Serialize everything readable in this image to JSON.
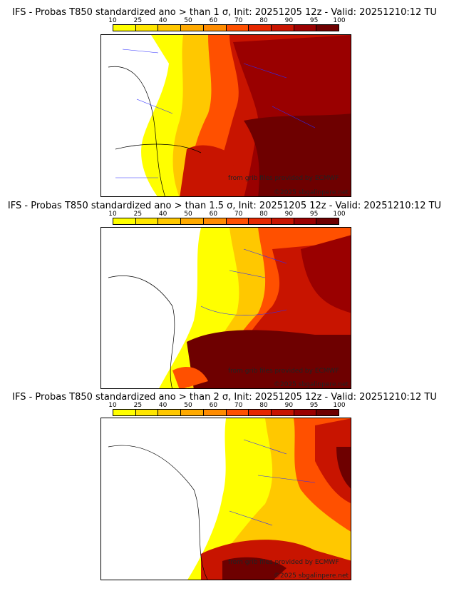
{
  "colorbar": {
    "ticks": [
      "10",
      "25",
      "40",
      "50",
      "60",
      "70",
      "80",
      "90",
      "95",
      "100"
    ],
    "colors": [
      "#ffff00",
      "#ffe600",
      "#ffc800",
      "#ffaa00",
      "#ff8c00",
      "#ff5000",
      "#e62800",
      "#c81400",
      "#9a0000",
      "#6e0000"
    ]
  },
  "panels": [
    {
      "title": "IFS - Probas T850  standardized ano > than 1 σ, Init: 20251205 12z - Valid: 20251210:12 TU",
      "level": 1
    },
    {
      "title": "IFS - Probas T850  standardized ano > than 1.5 σ, Init: 20251205 12z - Valid: 20251210:12 TU",
      "level": 2
    },
    {
      "title": "IFS - Probas T850  standardized ano > than 2 σ, Init: 20251205 12z - Valid: 20251210:12 TU",
      "level": 3
    }
  ],
  "credits": {
    "source": "from grib files provided by ECMWF",
    "copyright": "©2025 sbgalinpere.net"
  }
}
